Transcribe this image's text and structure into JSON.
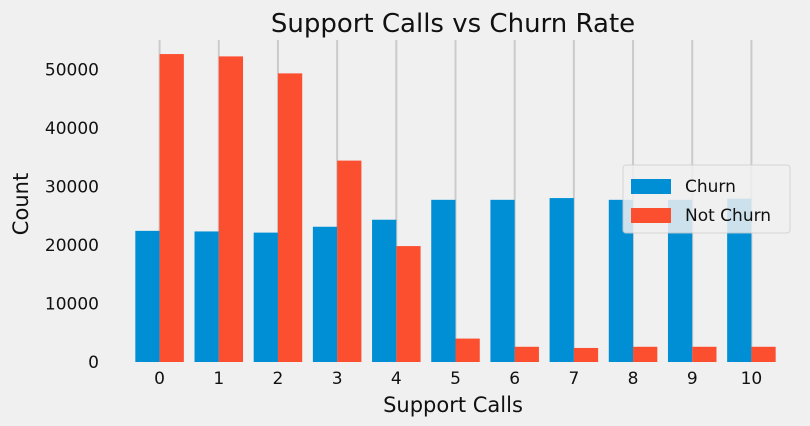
{
  "chart_data": {
    "type": "bar",
    "title": "Support Calls vs Churn Rate",
    "xlabel": "Support Calls",
    "ylabel": "Count",
    "categories": [
      "0",
      "1",
      "2",
      "3",
      "4",
      "5",
      "6",
      "7",
      "8",
      "9",
      "10"
    ],
    "series": [
      {
        "name": "Churn",
        "color": "#008fd5",
        "values": [
          22400,
          22300,
          22100,
          23100,
          24300,
          27700,
          27700,
          28000,
          27700,
          27700,
          27900
        ]
      },
      {
        "name": "Not Churn",
        "color": "#fc4f30",
        "values": [
          52600,
          52200,
          49300,
          34400,
          19800,
          4000,
          2600,
          2400,
          2600,
          2600,
          2600
        ]
      }
    ],
    "ylim": [
      0,
      55000
    ],
    "yticks": [
      "0",
      "10000",
      "20000",
      "30000",
      "40000",
      "50000"
    ],
    "grid": "x-only",
    "legend_position": "center-right"
  }
}
